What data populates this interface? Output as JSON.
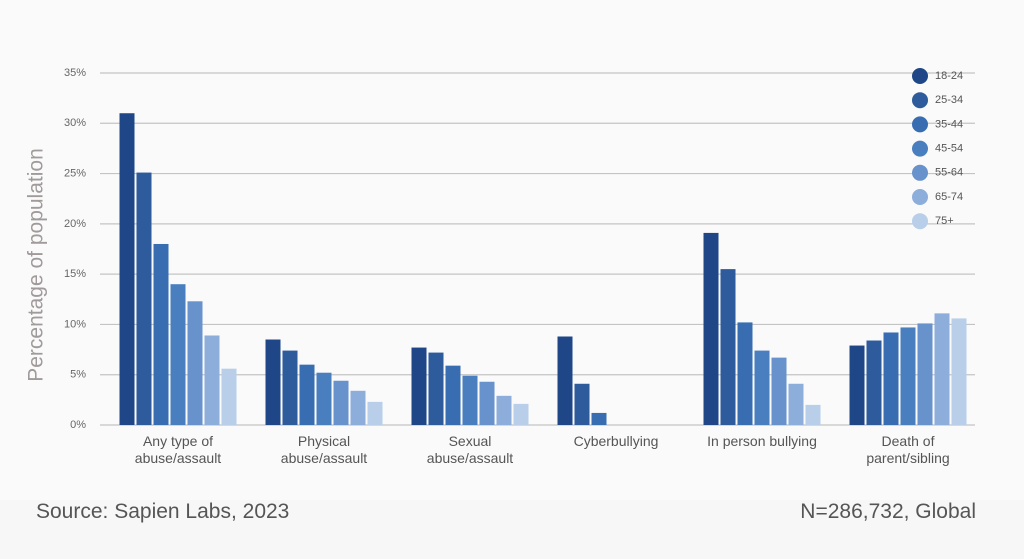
{
  "chart_data": {
    "type": "bar",
    "y_label": "Percentage of population",
    "categories": [
      "Any type of abuse/assault",
      "Physical abuse/assault",
      "Sexual abuse/assault",
      "Cyberbullying",
      "In person bullying",
      "Death of parent/sibling"
    ],
    "series": [
      {
        "name": "18-24",
        "color": "#1f4788",
        "values": [
          31,
          8.5,
          7.7,
          8.8,
          19.1,
          7.9
        ]
      },
      {
        "name": "25-34",
        "color": "#2d5b9c",
        "values": [
          25.1,
          7.4,
          7.2,
          4.1,
          15.5,
          8.4
        ]
      },
      {
        "name": "35-44",
        "color": "#396db2",
        "values": [
          18,
          6,
          5.9,
          1.2,
          10.2,
          9.2
        ]
      },
      {
        "name": "45-54",
        "color": "#4a7fbf",
        "values": [
          14,
          5.2,
          4.9,
          null,
          7.4,
          9.7
        ]
      },
      {
        "name": "55-64",
        "color": "#6892cb",
        "values": [
          12.3,
          4.4,
          4.3,
          null,
          6.7,
          10.1
        ]
      },
      {
        "name": "65-74",
        "color": "#8daedb",
        "values": [
          8.9,
          3.4,
          2.9,
          null,
          4.1,
          11.1
        ]
      },
      {
        "name": "75+",
        "color": "#b8cee9",
        "values": [
          5.6,
          2.3,
          2.1,
          null,
          2,
          10.6
        ]
      }
    ],
    "ylim": [
      0,
      35
    ],
    "yticks": [
      {
        "value": 0,
        "label": "0%"
      },
      {
        "value": 5,
        "label": "5%"
      },
      {
        "value": 10,
        "label": "10%"
      },
      {
        "value": 15,
        "label": "15%"
      },
      {
        "value": 20,
        "label": "20%"
      },
      {
        "value": 25,
        "label": "25%"
      },
      {
        "value": 30,
        "label": "30%"
      },
      {
        "value": 35,
        "label": "35%"
      }
    ],
    "grid": true,
    "legend": "top-right",
    "source": "Source: Sapien Labs, 2023",
    "note": "N=286,732, Global"
  }
}
